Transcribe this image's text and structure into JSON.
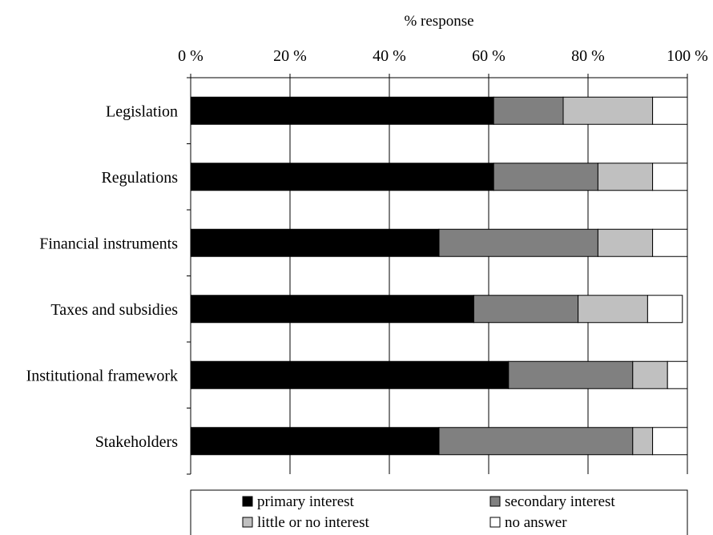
{
  "chart_data": {
    "type": "bar",
    "orientation": "horizontal",
    "stacked": true,
    "title": "",
    "xlabel": "% response",
    "ylabel": "",
    "xlim": [
      0,
      100
    ],
    "x_ticks": [
      0,
      20,
      40,
      60,
      80,
      100
    ],
    "x_tick_labels": [
      "0 %",
      "20 %",
      "40 %",
      "60 %",
      "80 %",
      "100 %"
    ],
    "grid": "vertical lines at major ticks",
    "legend_position": "bottom",
    "categories": [
      "Legislation",
      "Regulations",
      "Financial instruments",
      "Taxes and subsidies",
      "Institutional framework",
      "Stakeholders"
    ],
    "series": [
      {
        "name": "primary interest",
        "color": "#000000",
        "values": [
          61,
          61,
          50,
          57,
          64,
          50
        ]
      },
      {
        "name": "secondary interest",
        "color": "#808080",
        "values": [
          14,
          21,
          32,
          21,
          25,
          39
        ]
      },
      {
        "name": "little or no interest",
        "color": "#c0c0c0",
        "values": [
          18,
          11,
          11,
          14,
          7,
          4
        ]
      },
      {
        "name": "no answer",
        "color": "#ffffff",
        "values": [
          7,
          7,
          7,
          7,
          4,
          7
        ]
      }
    ]
  }
}
